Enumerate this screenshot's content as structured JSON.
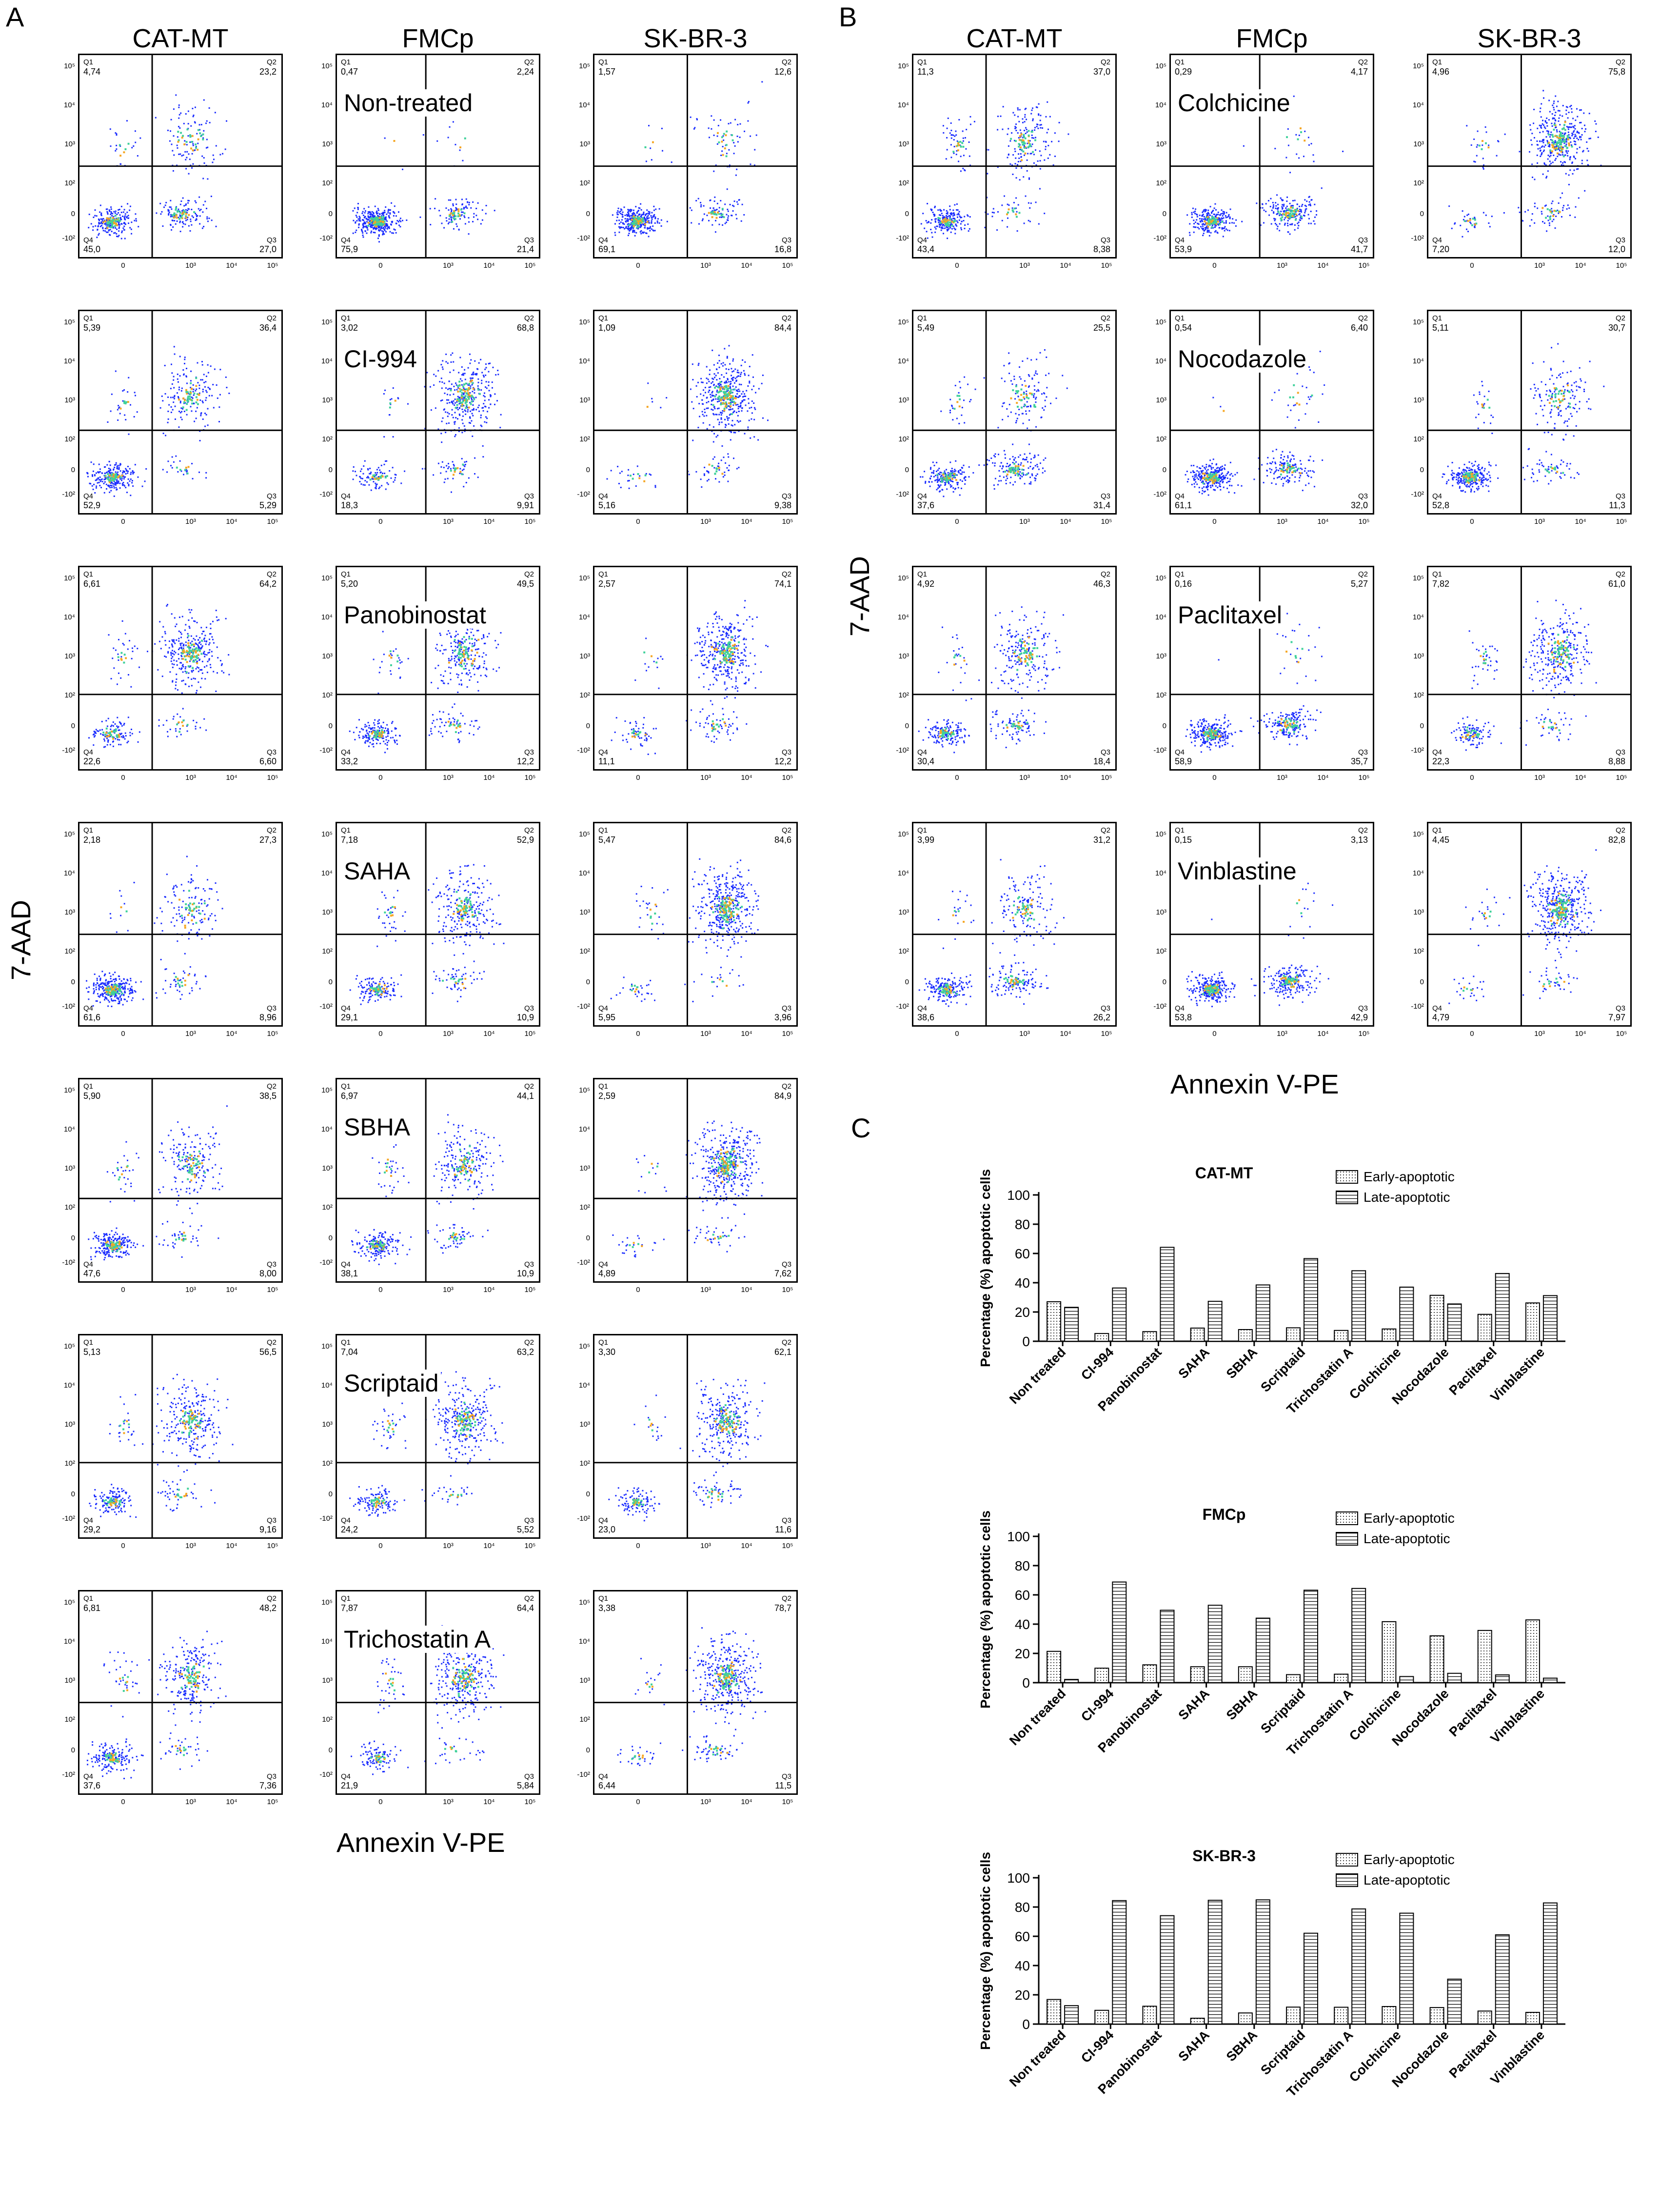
{
  "panel_labels": {
    "A": "A",
    "B": "B",
    "C": "C"
  },
  "axes": {
    "ylabel": "7-AAD",
    "xlabel": "Annexin V-PE",
    "yticks": [
      "10⁵",
      "10⁴",
      "10³",
      "10²",
      "0",
      "-10²"
    ],
    "xticks": [
      "0",
      "10³",
      "10⁴",
      "10⁵"
    ],
    "quadrants": [
      "Q1",
      "Q2",
      "Q3",
      "Q4"
    ]
  },
  "panelA": {
    "columns": [
      "CAT-MT",
      "FMCp",
      "SK-BR-3"
    ],
    "rows": [
      {
        "treatment": "Non-treated",
        "q": [
          [
            "4,74",
            "23,2",
            "27,0",
            "45,0"
          ],
          [
            "0,47",
            "2,24",
            "21,4",
            "75,9"
          ],
          [
            "1,57",
            "12,6",
            "16,8",
            "69,1"
          ]
        ]
      },
      {
        "treatment": "CI-994",
        "q": [
          [
            "5,39",
            "36,4",
            "5,29",
            "52,9"
          ],
          [
            "3,02",
            "68,8",
            "9,91",
            "18,3"
          ],
          [
            "1,09",
            "84,4",
            "9,38",
            "5,16"
          ]
        ]
      },
      {
        "treatment": "Panobinostat",
        "q": [
          [
            "6,61",
            "64,2",
            "6,60",
            "22,6"
          ],
          [
            "5,20",
            "49,5",
            "12,2",
            "33,2"
          ],
          [
            "2,57",
            "74,1",
            "12,2",
            "11,1"
          ]
        ]
      },
      {
        "treatment": "SAHA",
        "q": [
          [
            "2,18",
            "27,3",
            "8,96",
            "61,6"
          ],
          [
            "7,18",
            "52,9",
            "10,9",
            "29,1"
          ],
          [
            "5,47",
            "84,6",
            "3,96",
            "5,95"
          ]
        ]
      },
      {
        "treatment": "SBHA",
        "q": [
          [
            "5,90",
            "38,5",
            "8,00",
            "47,6"
          ],
          [
            "6,97",
            "44,1",
            "10,9",
            "38,1"
          ],
          [
            "2,59",
            "84,9",
            "7,62",
            "4,89"
          ]
        ]
      },
      {
        "treatment": "Scriptaid",
        "q": [
          [
            "5,13",
            "56,5",
            "9,16",
            "29,2"
          ],
          [
            "7,04",
            "63,2",
            "5,52",
            "24,2"
          ],
          [
            "3,30",
            "62,1",
            "11,6",
            "23,0"
          ]
        ]
      },
      {
        "treatment": "Trichostatin A",
        "q": [
          [
            "6,81",
            "48,2",
            "7,36",
            "37,6"
          ],
          [
            "7,87",
            "64,4",
            "5,84",
            "21,9"
          ],
          [
            "3,38",
            "78,7",
            "11,5",
            "6,44"
          ]
        ]
      }
    ]
  },
  "panelB": {
    "columns": [
      "CAT-MT",
      "FMCp",
      "SK-BR-3"
    ],
    "rows": [
      {
        "treatment": "Colchicine",
        "q": [
          [
            "11,3",
            "37,0",
            "8,38",
            "43,4"
          ],
          [
            "0,29",
            "4,17",
            "41,7",
            "53,9"
          ],
          [
            "4,96",
            "75,8",
            "12,0",
            "7,20"
          ]
        ]
      },
      {
        "treatment": "Nocodazole",
        "q": [
          [
            "5,49",
            "25,5",
            "31,4",
            "37,6"
          ],
          [
            "0,54",
            "6,40",
            "32,0",
            "61,1"
          ],
          [
            "5,11",
            "30,7",
            "11,3",
            "52,8"
          ]
        ]
      },
      {
        "treatment": "Paclitaxel",
        "q": [
          [
            "4,92",
            "46,3",
            "18,4",
            "30,4"
          ],
          [
            "0,16",
            "5,27",
            "35,7",
            "58,9"
          ],
          [
            "7,82",
            "61,0",
            "8,88",
            "22,3"
          ]
        ]
      },
      {
        "treatment": "Vinblastine",
        "q": [
          [
            "3,99",
            "31,2",
            "26,2",
            "38,6"
          ],
          [
            "0,15",
            "3,13",
            "42,9",
            "53,8"
          ],
          [
            "4,45",
            "82,8",
            "7,97",
            "4,79"
          ]
        ]
      }
    ]
  },
  "chart_data": [
    {
      "type": "bar",
      "title": "CAT-MT",
      "ylabel": "Percentage (%) apoptotic cells",
      "ylim": [
        0,
        100
      ],
      "yticks": [
        0,
        20,
        40,
        60,
        80,
        100
      ],
      "categories": [
        "Non treated",
        "CI-994",
        "Panobinostat",
        "SAHA",
        "SBHA",
        "Scriptaid",
        "Trichostatin A",
        "Colchicine",
        "Nocodazole",
        "Paclitaxel",
        "Vinblastine"
      ],
      "series": [
        {
          "name": "Early-apoptotic",
          "values": [
            27.0,
            5.3,
            6.6,
            9.0,
            8.0,
            9.2,
            7.4,
            8.4,
            31.4,
            18.4,
            26.2
          ]
        },
        {
          "name": "Late-apoptotic",
          "values": [
            23.2,
            36.4,
            64.2,
            27.3,
            38.5,
            56.5,
            48.2,
            37.0,
            25.5,
            46.3,
            31.2
          ]
        }
      ]
    },
    {
      "type": "bar",
      "title": "FMCp",
      "ylabel": "Percentage (%) apoptotic cells",
      "ylim": [
        0,
        100
      ],
      "yticks": [
        0,
        20,
        40,
        60,
        80,
        100
      ],
      "categories": [
        "Non treated",
        "CI-994",
        "Panobinostat",
        "SAHA",
        "SBHA",
        "Scriptaid",
        "Trichostatin A",
        "Colchicine",
        "Nocodazole",
        "Paclitaxel",
        "Vinblastine"
      ],
      "series": [
        {
          "name": "Early-apoptotic",
          "values": [
            21.4,
            9.9,
            12.2,
            10.9,
            10.9,
            5.5,
            5.8,
            41.7,
            32.0,
            35.7,
            42.9
          ]
        },
        {
          "name": "Late-apoptotic",
          "values": [
            2.2,
            68.8,
            49.5,
            52.9,
            44.1,
            63.2,
            64.4,
            4.2,
            6.4,
            5.3,
            3.1
          ]
        }
      ]
    },
    {
      "type": "bar",
      "title": "SK-BR-3",
      "ylabel": "Percentage (%) apoptotic cells",
      "ylim": [
        0,
        100
      ],
      "yticks": [
        0,
        20,
        40,
        60,
        80,
        100
      ],
      "categories": [
        "Non treated",
        "CI-994",
        "Panobinostat",
        "SAHA",
        "SBHA",
        "Scriptaid",
        "Trichostatin A",
        "Colchicine",
        "Nocodazole",
        "Paclitaxel",
        "Vinblastine"
      ],
      "series": [
        {
          "name": "Early-apoptotic",
          "values": [
            16.8,
            9.4,
            12.2,
            4.0,
            7.6,
            11.6,
            11.5,
            12.0,
            11.3,
            8.9,
            8.0
          ]
        },
        {
          "name": "Late-apoptotic",
          "values": [
            12.6,
            84.4,
            74.1,
            84.6,
            84.9,
            62.1,
            78.7,
            75.8,
            30.7,
            61.0,
            82.8
          ]
        }
      ]
    }
  ]
}
